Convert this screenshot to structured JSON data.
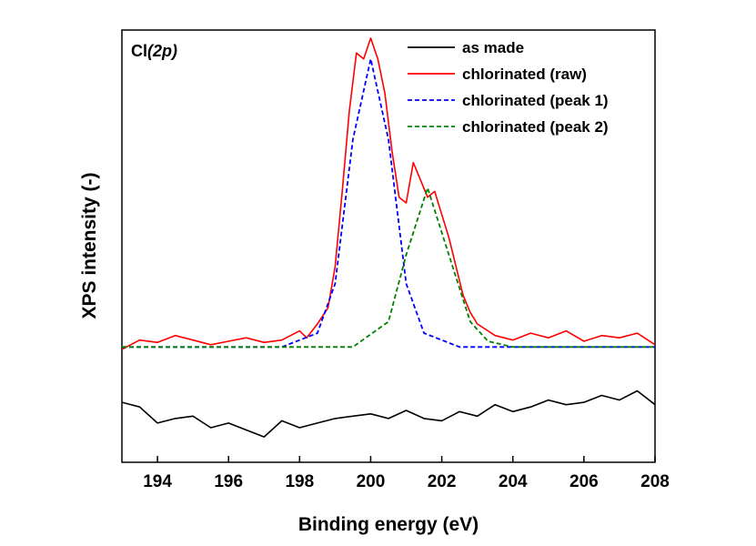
{
  "chart_data": {
    "type": "line",
    "title": "",
    "annotation": "Cl(2p)",
    "annotation_main": "Cl",
    "annotation_italic": "(2p)",
    "xlabel": "Binding energy (eV)",
    "ylabel": "XPS intensity (-)",
    "xlim": [
      193,
      208
    ],
    "ylim": [
      -1.0,
      2.75
    ],
    "xticks": [
      194,
      196,
      198,
      200,
      202,
      204,
      206,
      208
    ],
    "xtick_labels": [
      "194",
      "196",
      "198",
      "200",
      "202",
      "204",
      "206",
      "208"
    ],
    "yticks_shown": false,
    "legend_position": "top-right",
    "series": [
      {
        "name": "as made",
        "color": "#000000",
        "style": "solid",
        "x": [
          193.0,
          193.5,
          194.0,
          194.5,
          195.0,
          195.5,
          196.0,
          196.5,
          197.0,
          197.5,
          198.0,
          198.5,
          199.0,
          199.5,
          200.0,
          200.5,
          201.0,
          201.5,
          202.0,
          202.5,
          203.0,
          203.5,
          204.0,
          204.5,
          205.0,
          205.5,
          206.0,
          206.5,
          207.0,
          207.5,
          208.0
        ],
        "y": [
          -0.48,
          -0.52,
          -0.66,
          -0.62,
          -0.6,
          -0.7,
          -0.66,
          -0.72,
          -0.78,
          -0.64,
          -0.7,
          -0.66,
          -0.62,
          -0.6,
          -0.58,
          -0.62,
          -0.55,
          -0.62,
          -0.64,
          -0.56,
          -0.6,
          -0.5,
          -0.56,
          -0.52,
          -0.46,
          -0.5,
          -0.48,
          -0.42,
          -0.46,
          -0.38,
          -0.5
        ]
      },
      {
        "name": "chlorinated (raw)",
        "color": "#ff0000",
        "style": "solid",
        "x": [
          193.0,
          193.5,
          194.0,
          194.5,
          195.0,
          195.5,
          196.0,
          196.5,
          197.0,
          197.5,
          198.0,
          198.2,
          198.5,
          198.8,
          199.0,
          199.2,
          199.4,
          199.6,
          199.8,
          200.0,
          200.2,
          200.4,
          200.6,
          200.8,
          201.0,
          201.2,
          201.4,
          201.6,
          201.8,
          202.0,
          202.2,
          202.4,
          202.6,
          202.8,
          203.0,
          203.5,
          204.0,
          204.5,
          205.0,
          205.5,
          206.0,
          206.5,
          207.0,
          207.5,
          208.0
        ],
        "y": [
          -0.02,
          0.06,
          0.04,
          0.1,
          0.06,
          0.02,
          0.05,
          0.08,
          0.04,
          0.06,
          0.14,
          0.08,
          0.2,
          0.34,
          0.7,
          1.35,
          2.05,
          2.55,
          2.5,
          2.68,
          2.5,
          2.2,
          1.7,
          1.3,
          1.25,
          1.6,
          1.45,
          1.3,
          1.35,
          1.15,
          0.95,
          0.7,
          0.45,
          0.3,
          0.2,
          0.1,
          0.06,
          0.12,
          0.08,
          0.14,
          0.05,
          0.1,
          0.08,
          0.12,
          0.02
        ]
      },
      {
        "name": "chlorinated (peak 1)",
        "color": "#0000ff",
        "style": "dashed",
        "x": [
          193.0,
          197.5,
          198.5,
          199.0,
          199.5,
          200.0,
          200.5,
          201.0,
          201.5,
          202.5,
          208.0
        ],
        "y": [
          0.0,
          0.0,
          0.12,
          0.55,
          1.8,
          2.5,
          1.8,
          0.55,
          0.12,
          0.0,
          0.0
        ]
      },
      {
        "name": "chlorinated (peak 2)",
        "color": "#008000",
        "style": "dashed",
        "x": [
          193.0,
          199.5,
          200.5,
          201.0,
          201.6,
          202.2,
          202.8,
          203.3,
          204.0,
          208.0
        ],
        "y": [
          0.0,
          0.0,
          0.22,
          0.8,
          1.38,
          0.8,
          0.22,
          0.05,
          0.0,
          0.0
        ]
      }
    ]
  }
}
